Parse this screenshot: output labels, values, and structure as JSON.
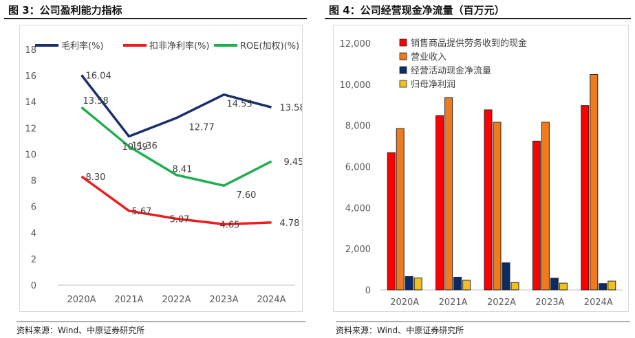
{
  "left_panel": {
    "title": "图 3：公司盈利能力指标",
    "source": "资料来源：Wind、中原证券研究所"
  },
  "right_panel": {
    "title": "图 4：公司经营现金净流量（百万元）",
    "source": "资料来源：Wind、中原证券研究所"
  },
  "chart_data": [
    {
      "type": "line",
      "categories": [
        "2020A",
        "2021A",
        "2022A",
        "2023A",
        "2024A"
      ],
      "ylim": [
        0,
        18
      ],
      "yticks": [
        0,
        2,
        4,
        6,
        8,
        10,
        12,
        14,
        16,
        18
      ],
      "legend_position": "top",
      "grid": false,
      "series": [
        {
          "name": "毛利率(%)",
          "color": "#1a2f6b",
          "values": [
            16.04,
            11.36,
            12.77,
            14.55,
            13.58
          ],
          "labels": [
            "16.04",
            "11.36",
            "12.77",
            "14.55",
            "13.58"
          ]
        },
        {
          "name": "扣非净利率(%)",
          "color": "#ee1c1c",
          "values": [
            8.3,
            5.67,
            5.07,
            4.65,
            4.78
          ],
          "labels": [
            "8.30",
            "5.67",
            "5.07",
            "4.65",
            "4.78"
          ]
        },
        {
          "name": "ROE(加权)(%)",
          "color": "#1fae4f",
          "values": [
            13.58,
            10.59,
            8.41,
            7.6,
            9.45
          ],
          "labels": [
            "13.58",
            "10.59",
            "8.41",
            "7.60",
            "9.45"
          ]
        }
      ]
    },
    {
      "type": "bar",
      "categories": [
        "2020A",
        "2021A",
        "2022A",
        "2023A",
        "2024A"
      ],
      "ylim": [
        0,
        12000
      ],
      "yticks": [
        0,
        2000,
        4000,
        6000,
        8000,
        10000,
        12000
      ],
      "ytick_labels": [
        "0",
        "2,000",
        "4,000",
        "6,000",
        "8,000",
        "10,000",
        "12,000"
      ],
      "legend_position": "top",
      "grid": false,
      "series": [
        {
          "name": "销售商品提供劳务收到的现金",
          "color": "#ff0000",
          "values": [
            6680,
            8480,
            8760,
            7240,
            8970
          ]
        },
        {
          "name": "营业收入",
          "color": "#f07a1e",
          "values": [
            7850,
            9360,
            8160,
            8160,
            10480
          ]
        },
        {
          "name": "经营活动现金净流量",
          "color": "#0d2a63",
          "values": [
            650,
            620,
            1320,
            570,
            310
          ]
        },
        {
          "name": "归母净利润",
          "color": "#f0c020",
          "values": [
            580,
            470,
            360,
            330,
            430
          ]
        }
      ]
    }
  ]
}
